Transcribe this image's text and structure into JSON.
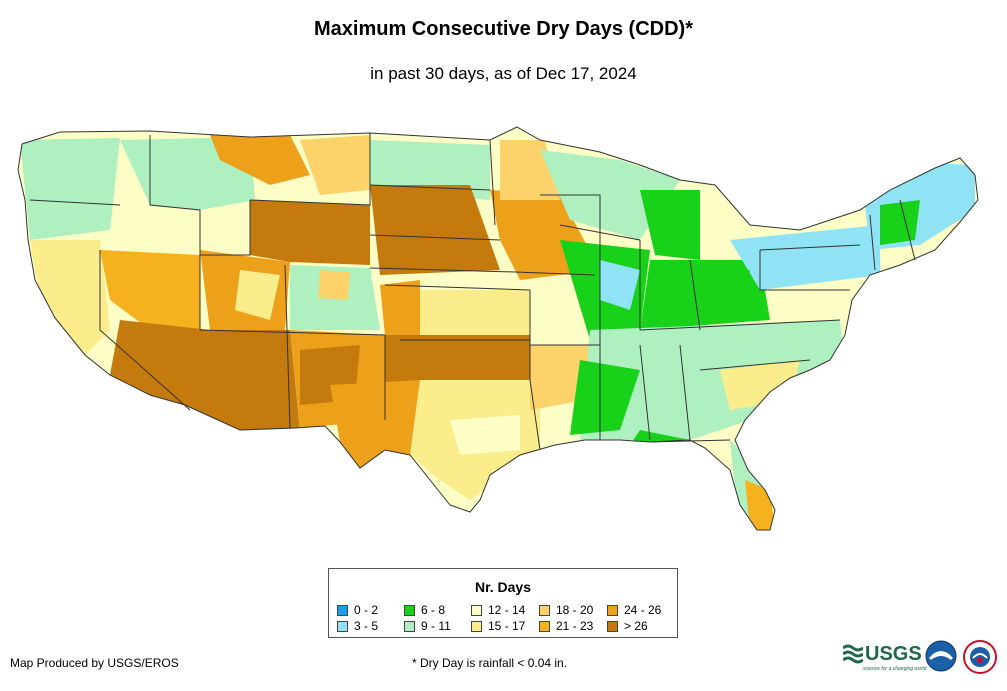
{
  "title": "Maximum Consecutive Dry Days (CDD)*",
  "subtitle": "in past 30 days, as of Dec 17, 2024",
  "legend": {
    "title": "Nr. Days",
    "items": [
      {
        "label": "0 - 2",
        "color": "#1aa0e8"
      },
      {
        "label": "3 - 5",
        "color": "#8fe3f5"
      },
      {
        "label": "6 - 8",
        "color": "#18d21a"
      },
      {
        "label": "9 - 11",
        "color": "#aef0c0"
      },
      {
        "label": "12 - 14",
        "color": "#fdfdc6"
      },
      {
        "label": "15 - 17",
        "color": "#fbec8c"
      },
      {
        "label": "18 - 20",
        "color": "#fbd36a"
      },
      {
        "label": "21 - 23",
        "color": "#f5b21e"
      },
      {
        "label": "24 - 26",
        "color": "#eda019"
      },
      {
        "label": "> 26",
        "color": "#c47a0c"
      }
    ]
  },
  "credit": "Map Produced by USGS/EROS",
  "footnote": "* Dry Day is rainfall < 0.04 in.",
  "logos": {
    "usgs": "USGS",
    "usgs_tagline": "science for a changing world"
  },
  "icons": {
    "noaa": "noaa-logo-icon",
    "nws": "nws-logo-icon"
  }
}
